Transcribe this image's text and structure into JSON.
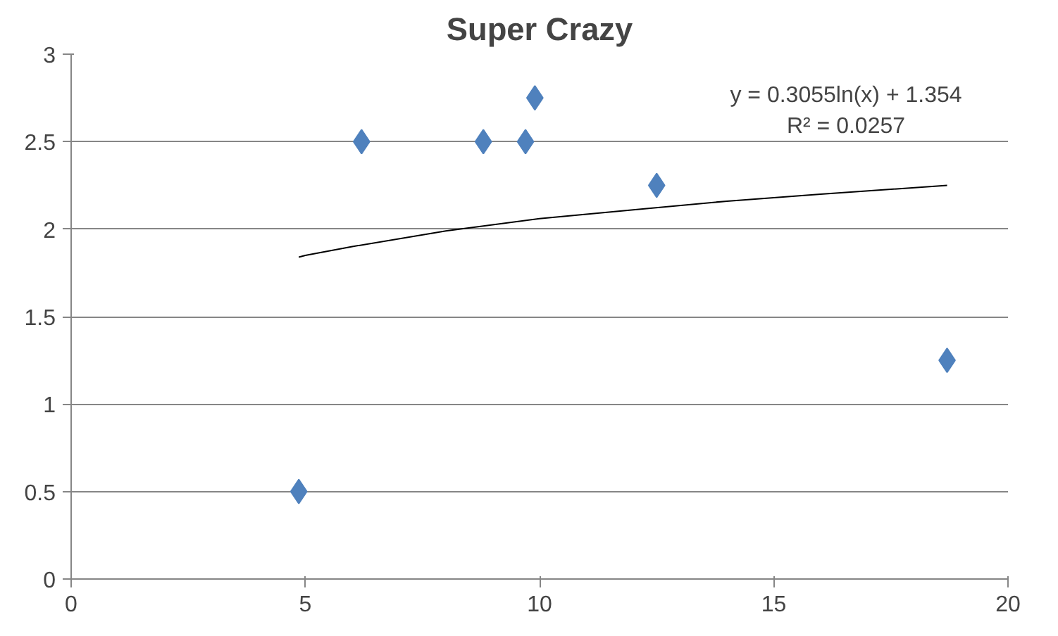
{
  "chart_data": {
    "type": "scatter",
    "title": "Super Crazy",
    "series": [
      {
        "color": "#4f81bd",
        "marker": "diamond",
        "x": [
          4.86,
          6.2,
          8.8,
          9.7,
          9.9,
          12.5,
          18.7
        ],
        "values": [
          0.5,
          2.5,
          2.5,
          2.5,
          2.75,
          2.25,
          1.25
        ]
      },
      {
        "type": "line",
        "marker": "none",
        "color": "#000000",
        "x": [
          4.86,
          5,
          6,
          8,
          10,
          12,
          14,
          16,
          18.7
        ],
        "values": [
          1.84,
          1.85,
          1.9,
          1.99,
          2.06,
          2.11,
          2.16,
          2.2,
          2.25
        ]
      }
    ],
    "xlim": [
      0,
      20
    ],
    "xticks": [
      0,
      5,
      10,
      15,
      20
    ],
    "ylim": [
      0,
      3
    ],
    "yticks": [
      0,
      0.5,
      1,
      1.5,
      2,
      2.5,
      3
    ],
    "grid": "y",
    "annotations": [
      "y = 0.3055ln(x) + 1.354",
      "R² = 0.0257"
    ]
  }
}
